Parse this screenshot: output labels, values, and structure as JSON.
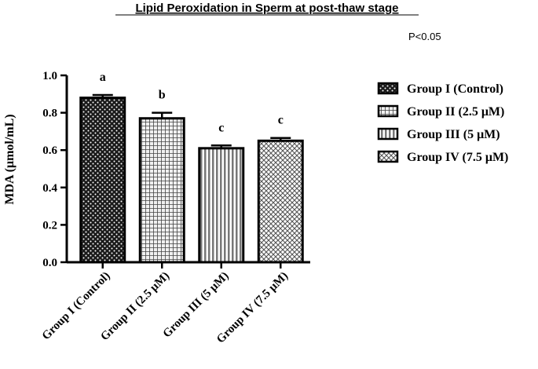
{
  "chart_data": {
    "type": "bar",
    "title": "Lipid Peroxidation in Sperm at post-thaw stage",
    "annotation": "P<0.05",
    "ylabel": "MDA (μmol/mL)",
    "xlabel": "",
    "ylim": [
      0,
      1.0
    ],
    "yticks": [
      "0.0",
      "0.2",
      "0.4",
      "0.6",
      "0.8",
      "1.0"
    ],
    "ytick_values": [
      0,
      0.2,
      0.4,
      0.6,
      0.8,
      1.0
    ],
    "categories": [
      "Group I (Control)",
      "Group II (2.5 μM)",
      "Group III (5 μM)",
      "Group IV (7.5 μM)"
    ],
    "values": [
      0.88,
      0.77,
      0.61,
      0.65
    ],
    "errors": [
      0.015,
      0.03,
      0.015,
      0.015
    ],
    "significance_letters": [
      "a",
      "b",
      "c",
      "c"
    ],
    "patterns": [
      "dots-dark",
      "grid",
      "vertical-stripes",
      "crosshatch"
    ],
    "legend": {
      "placement": "right",
      "entries": [
        "Group I (Control)",
        "Group II (2.5 μM)",
        "Group III (5 μM)",
        "Group IV (7.5 μM)"
      ]
    },
    "grid": false
  }
}
